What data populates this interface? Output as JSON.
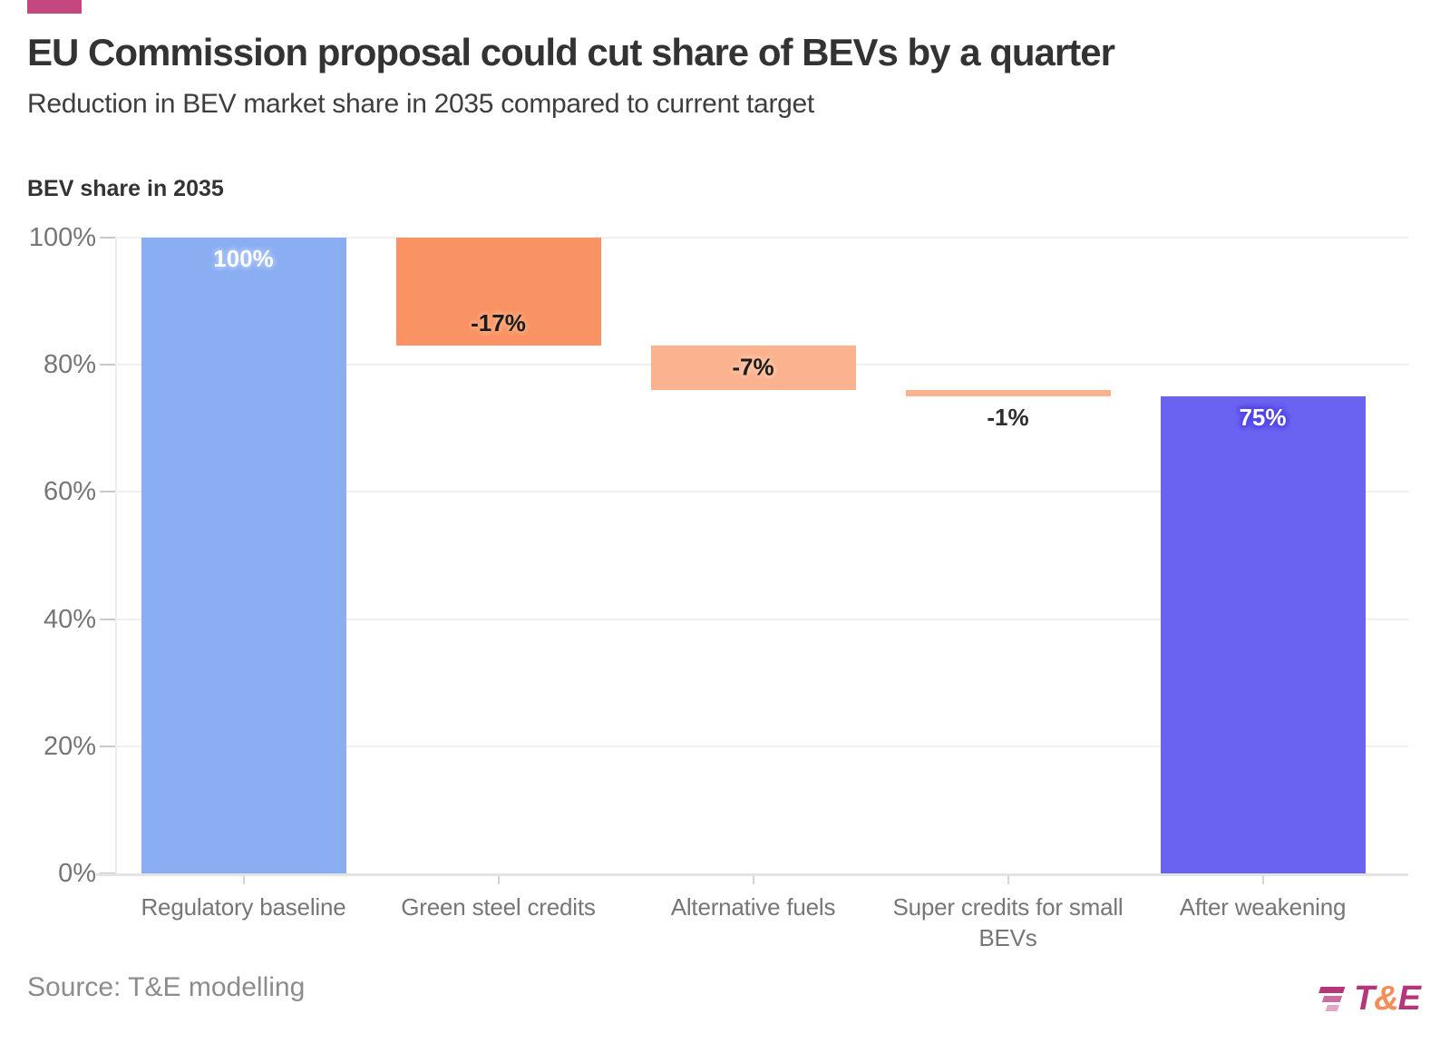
{
  "header": {
    "accent_color": "#c4487f",
    "title": "EU Commission proposal could cut share of BEVs by a quarter",
    "subtitle": "Reduction in BEV market share in 2035 compared to current target"
  },
  "chart_data": {
    "type": "bar",
    "subtype": "waterfall",
    "axis_title": "BEV share in 2035",
    "ylim": [
      0,
      100
    ],
    "grid": true,
    "y_ticks": [
      "0%",
      "20%",
      "40%",
      "60%",
      "80%",
      "100%"
    ],
    "y_tick_values": [
      0,
      20,
      40,
      60,
      80,
      100
    ],
    "categories": [
      "Regulatory baseline",
      "Green steel credits",
      "Alternative fuels",
      "Super credits for small BEVs",
      "After weakening"
    ],
    "values": [
      100,
      -17,
      -7,
      -1,
      75
    ],
    "bars": [
      {
        "category": "Regulatory baseline",
        "value": 100,
        "label": "100%",
        "start": 0,
        "end": 100,
        "color": "#8baef2",
        "label_color": "#ffffff",
        "label_glow": "#a3bff6",
        "label_pos": "inside-top"
      },
      {
        "category": "Green steel credits",
        "value": -17,
        "label": "-17%",
        "start": 100,
        "end": 83,
        "color": "#f99364",
        "label_color": "#1c1c1c",
        "label_glow": "#fba87e",
        "label_pos": "inside-bottom"
      },
      {
        "category": "Alternative fuels",
        "value": -7,
        "label": "-7%",
        "start": 83,
        "end": 76,
        "color": "#fbb28e",
        "label_color": "#1c1c1c",
        "label_glow": "#fcc3a4",
        "label_pos": "center"
      },
      {
        "category": "Super credits for small BEVs",
        "value": -1,
        "label": "-1%",
        "start": 76,
        "end": 75,
        "color": "#fbb28e",
        "label_color": "#2e2e2e",
        "label_glow": "#ffffff",
        "label_pos": "below"
      },
      {
        "category": "After weakening",
        "value": 75,
        "label": "75%",
        "start": 0,
        "end": 75,
        "color": "#6a62f0",
        "label_color": "#ffffff",
        "label_glow": "#5347e9",
        "label_pos": "inside-top"
      }
    ]
  },
  "footer": {
    "source": "Source: T&E modelling",
    "logo": {
      "t": "T",
      "amp": "&",
      "e": "E",
      "magenta": "#b5377a",
      "orange": "#f78e58",
      "stripe_colors": [
        "#b5377a",
        "#cb6d9f",
        "#e2a7c5"
      ]
    }
  }
}
